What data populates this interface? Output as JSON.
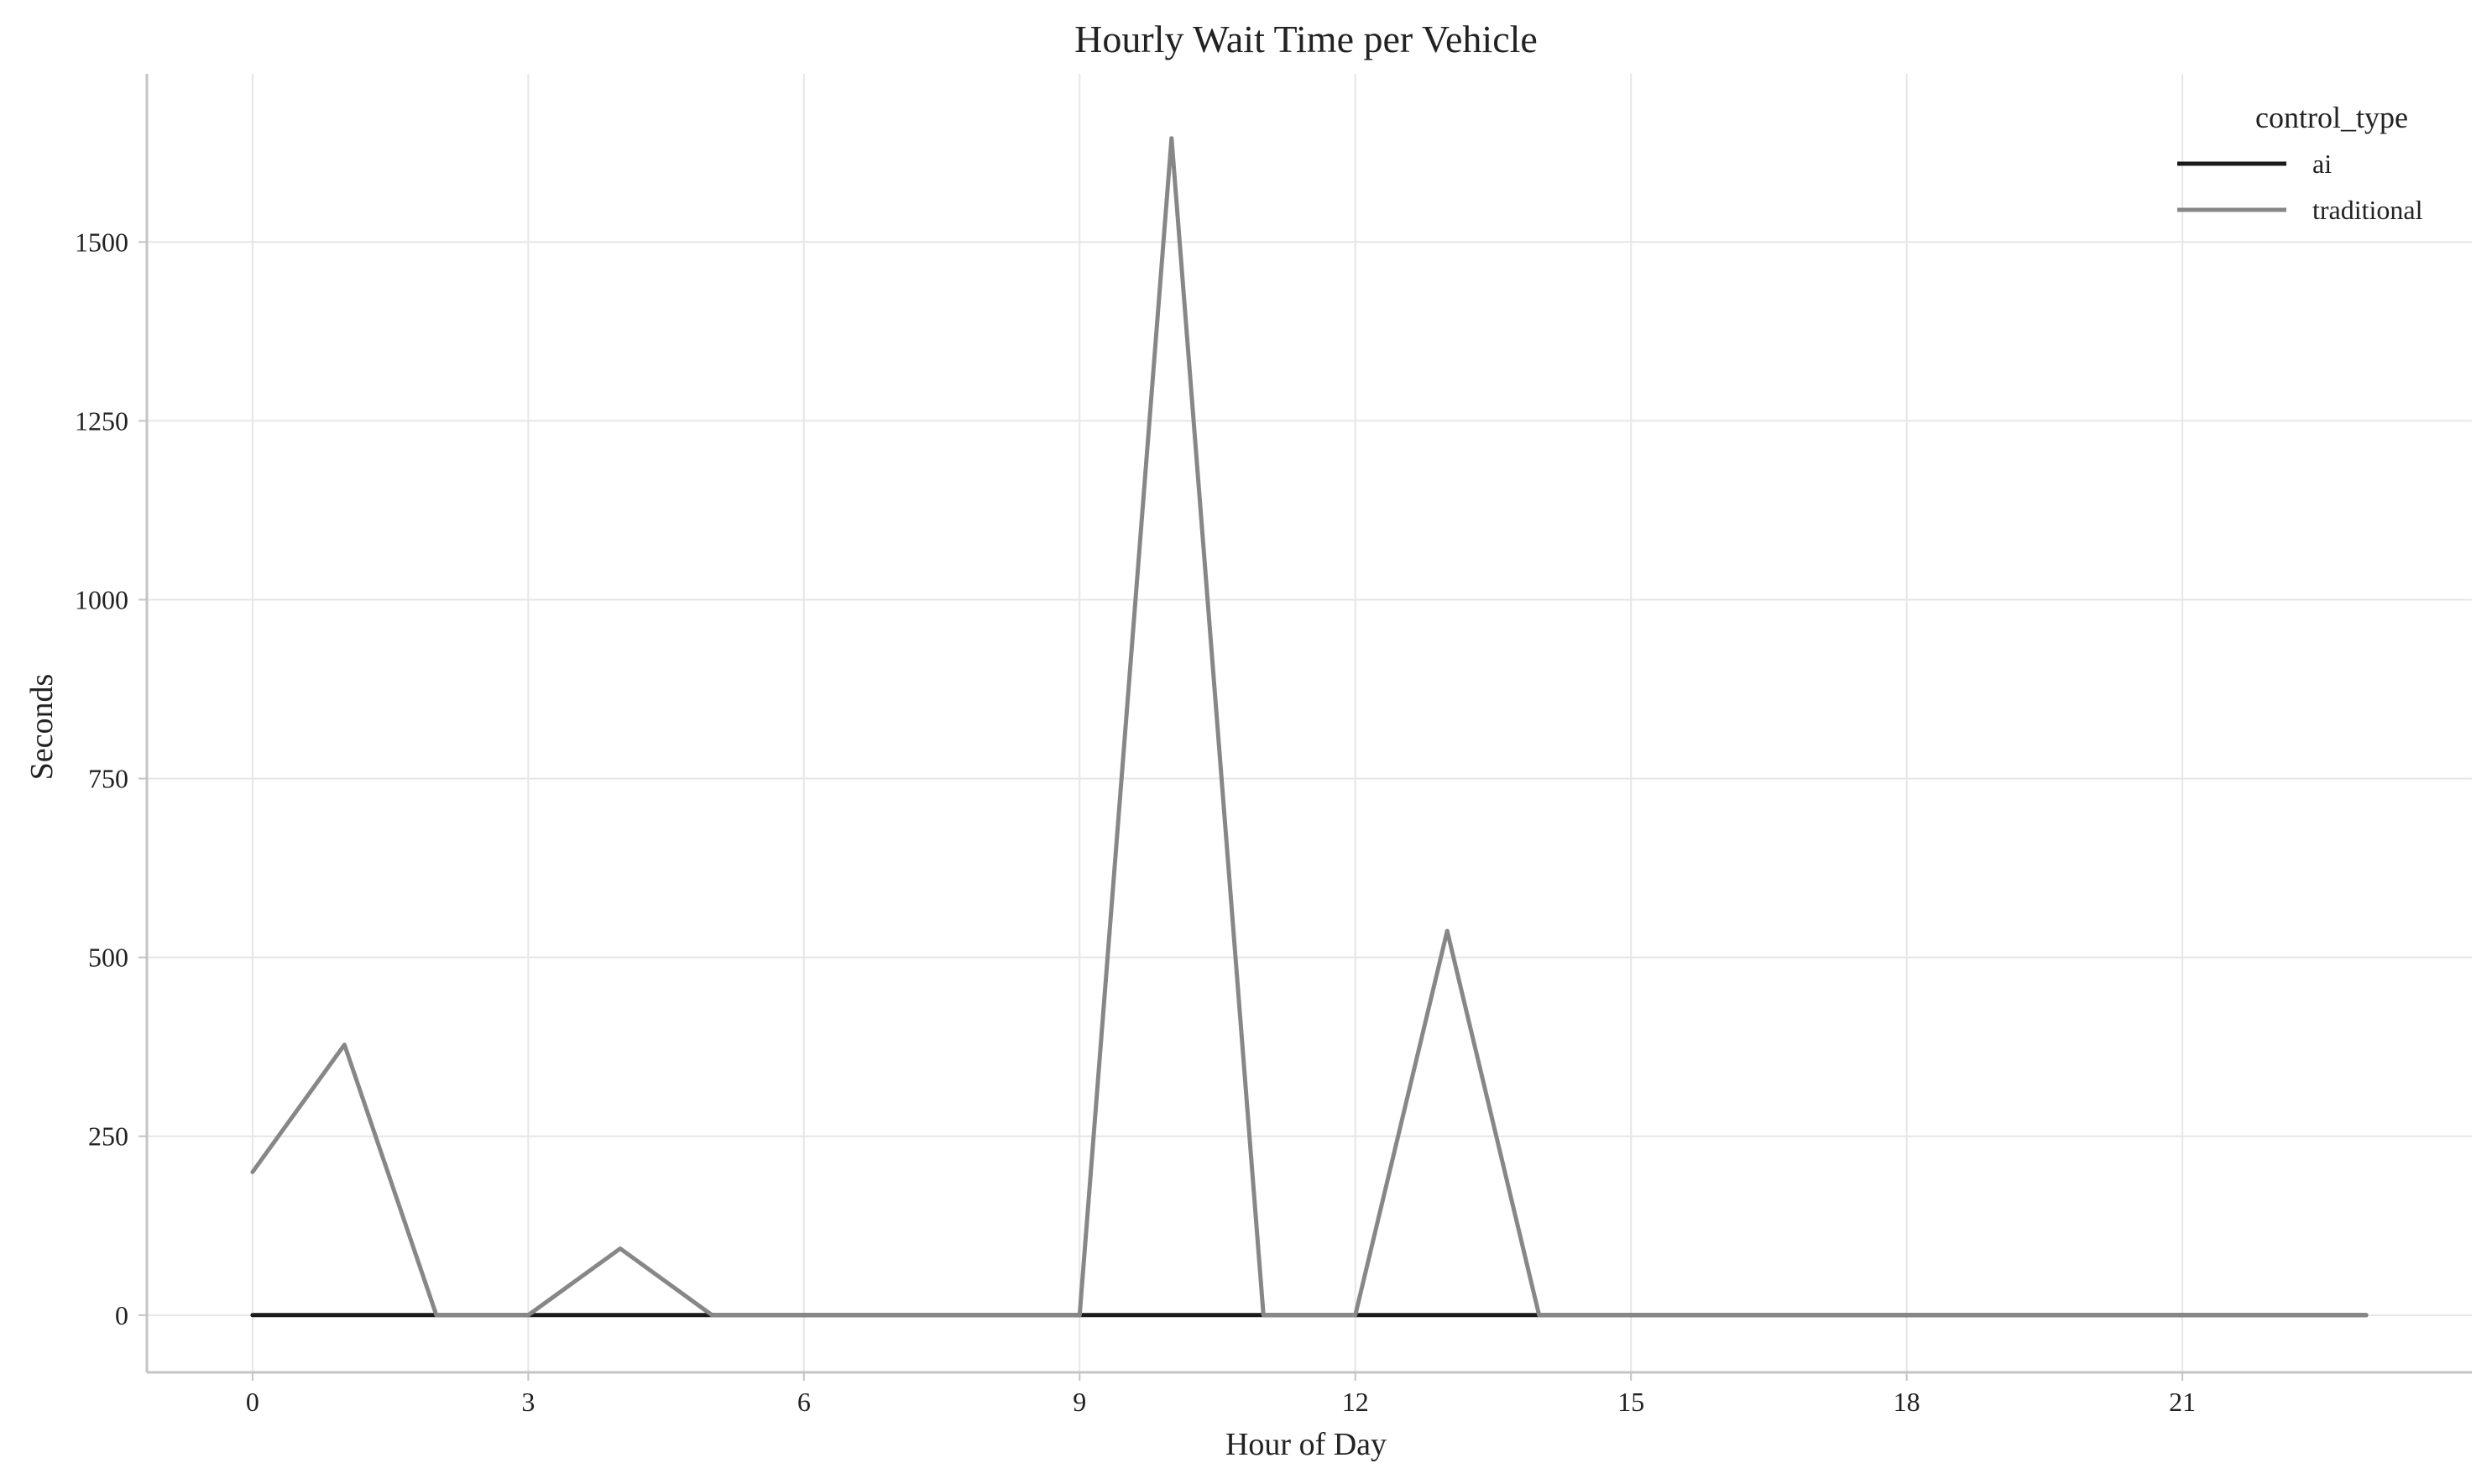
{
  "chart_data": {
    "type": "line",
    "title": "Hourly Wait Time per Vehicle",
    "xlabel": "Hour of Day",
    "ylabel": "Seconds",
    "xlim": [
      -1.15,
      24.15
    ],
    "ylim": [
      -80,
      1735
    ],
    "xticks": [
      0,
      3,
      6,
      9,
      12,
      15,
      18,
      21
    ],
    "xtick_labels": [
      "0",
      "3",
      "6",
      "9",
      "12",
      "15",
      "18",
      "21"
    ],
    "yticks": [
      0,
      250,
      500,
      750,
      1000,
      1250,
      1500
    ],
    "ytick_labels": [
      "0",
      "250",
      "500",
      "750",
      "1000",
      "1250",
      "1500"
    ],
    "grid": true,
    "legend": {
      "title": "control_type",
      "placement": "top-right"
    },
    "x": [
      0,
      1,
      2,
      3,
      4,
      5,
      6,
      7,
      8,
      9,
      10,
      11,
      12,
      13,
      14,
      15,
      16,
      17,
      18,
      19,
      20,
      21,
      22,
      23
    ],
    "series": [
      {
        "name": "ai",
        "color": "#1a1a1a",
        "values": [
          0,
          0,
          0,
          0,
          0,
          0,
          0,
          0,
          0,
          0,
          0,
          0,
          0,
          0,
          0,
          0,
          0,
          0,
          0,
          0,
          0,
          0,
          0,
          0
        ]
      },
      {
        "name": "traditional",
        "color": "#878787",
        "values": [
          200,
          378,
          0,
          0,
          93,
          0,
          0,
          0,
          0,
          0,
          1645,
          0,
          0,
          537,
          0,
          0,
          0,
          0,
          0,
          0,
          0,
          0,
          0,
          0
        ]
      }
    ]
  }
}
